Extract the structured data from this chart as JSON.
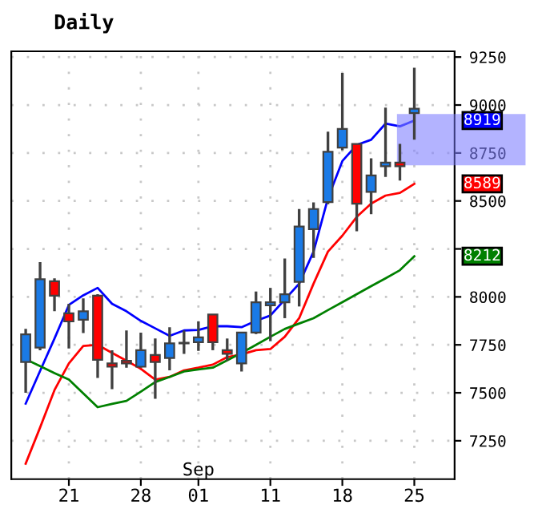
{
  "chart_data": {
    "type": "candlestick",
    "title": "Daily",
    "categories": [
      null,
      null,
      null,
      "21",
      null,
      null,
      null,
      null,
      "28",
      null,
      null,
      null,
      "01",
      null,
      null,
      null,
      null,
      "11",
      null,
      null,
      null,
      null,
      "18",
      null,
      null,
      null,
      null,
      "25"
    ],
    "ohlc": [
      [
        7661,
        7833,
        7500,
        7805
      ],
      [
        7736,
        8181,
        7722,
        8092
      ],
      [
        8081,
        8097,
        7925,
        8006
      ],
      [
        7914,
        7964,
        7731,
        7872
      ],
      [
        7881,
        7992,
        7811,
        7925
      ],
      [
        8006,
        8014,
        7578,
        7672
      ],
      [
        7653,
        7722,
        7519,
        7636
      ],
      [
        7667,
        7825,
        7631,
        7653
      ],
      [
        7636,
        7814,
        7631,
        7722
      ],
      [
        7697,
        7783,
        7469,
        7661
      ],
      [
        7681,
        7842,
        7617,
        7758
      ],
      [
        7758,
        7825,
        7703,
        7761
      ],
      [
        7764,
        7872,
        7719,
        7789
      ],
      [
        7908,
        7908,
        7722,
        7764
      ],
      [
        7722,
        7783,
        7667,
        7703
      ],
      [
        7653,
        7814,
        7611,
        7814
      ],
      [
        7814,
        8028,
        7806,
        7972
      ],
      [
        7956,
        8047,
        7769,
        7972
      ],
      [
        7972,
        8200,
        7889,
        8014
      ],
      [
        8078,
        8458,
        7950,
        8367
      ],
      [
        8353,
        8492,
        8203,
        8458
      ],
      [
        8494,
        8861,
        8483,
        8756
      ],
      [
        8778,
        9167,
        8764,
        8875
      ],
      [
        8797,
        8797,
        8342,
        8486
      ],
      [
        8547,
        8722,
        8431,
        8633
      ],
      [
        8681,
        8986,
        8625,
        8700
      ],
      [
        8700,
        8797,
        8606,
        8681
      ],
      [
        8958,
        9194,
        8819,
        8981
      ]
    ],
    "colors": [
      "#1a7ae6",
      "#1a7ae6",
      "#ff0000",
      "#ff0000",
      "#1a7ae6",
      "#ff0000",
      "#ff0000",
      "#ff0000",
      "#1a7ae6",
      "#ff0000",
      "#1a7ae6",
      "#1a7ae6",
      "#1a7ae6",
      "#ff0000",
      "#ff0000",
      "#1a7ae6",
      "#1a7ae6",
      "#1a7ae6",
      "#1a7ae6",
      "#1a7ae6",
      "#1a7ae6",
      "#1a7ae6",
      "#1a7ae6",
      "#ff0000",
      "#1a7ae6",
      "#1a7ae6",
      "#ff0000",
      "#1a7ae6"
    ],
    "series": [
      {
        "type": "line",
        "color": "#0000ff",
        "values": [
          7444,
          7614,
          7783,
          7958,
          8008,
          8047,
          7964,
          7925,
          7875,
          7836,
          7797,
          7825,
          7828,
          7847,
          7847,
          7842,
          7875,
          7903,
          7986,
          8069,
          8236,
          8514,
          8708,
          8792,
          8819,
          8903,
          8889,
          8919
        ]
      },
      {
        "type": "line",
        "color": "#ff0000",
        "values": [
          7131,
          7319,
          7514,
          7653,
          7744,
          7750,
          7708,
          7667,
          7625,
          7569,
          7583,
          7617,
          7631,
          7647,
          7686,
          7700,
          7722,
          7728,
          7792,
          7889,
          8069,
          8236,
          8319,
          8417,
          8486,
          8528,
          8542,
          8589
        ]
      },
      {
        "type": "line",
        "color": "#008000",
        "values": [
          7675,
          7639,
          7603,
          7569,
          7497,
          7425,
          7442,
          7458,
          7506,
          7556,
          7583,
          7611,
          7622,
          7631,
          7669,
          7708,
          7750,
          7792,
          7833,
          7861,
          7889,
          7931,
          7972,
          8014,
          8056,
          8097,
          8139,
          8212
        ]
      }
    ],
    "ylim": [
      7050,
      9280
    ],
    "yticks": [
      7250,
      7500,
      7750,
      8000,
      {
        "value": 8250,
        "label": null
      },
      8500,
      8750,
      9000,
      9250
    ],
    "grid": true,
    "marker": "none",
    "line_style": "solid",
    "bands": [
      {
        "axis": "y",
        "from": 8686,
        "to": 8953,
        "color": "#8080ff"
      }
    ],
    "annotations": [
      "Sep",
      "8919",
      "8589",
      "8212"
    ]
  }
}
